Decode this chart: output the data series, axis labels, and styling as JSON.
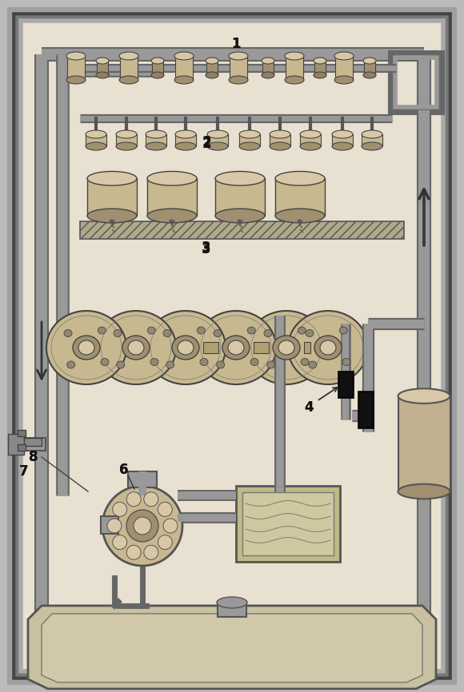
{
  "background": "#e8e0d0",
  "tan": "#c8b890",
  "light_tan": "#d8c8a8",
  "dark_tan": "#a09070",
  "pipe_dark": "#666666",
  "pipe_mid": "#999999",
  "black": "#111111",
  "dark_gray": "#444444",
  "mid_gray": "#888888",
  "fig_w": 5.8,
  "fig_h": 8.66,
  "dpi": 100
}
